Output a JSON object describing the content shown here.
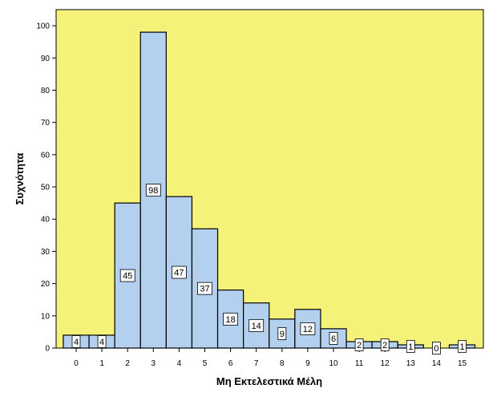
{
  "chart_data": {
    "type": "bar",
    "title": "",
    "xlabel": "Μη Εκτελεστικά Μέλη",
    "ylabel": "Συχνότητα",
    "ylim": [
      0,
      105
    ],
    "yticks": [
      0,
      10,
      20,
      30,
      40,
      50,
      60,
      70,
      80,
      90,
      100
    ],
    "xlim": [
      -0.5,
      15.5
    ],
    "xticks": [
      0,
      1,
      2,
      3,
      4,
      5,
      6,
      7,
      8,
      9,
      10,
      11,
      12,
      13,
      14,
      15
    ],
    "bins": [
      {
        "x": -0.5,
        "width": 0.5,
        "value": 4
      },
      {
        "x": 0.0,
        "width": 0.5,
        "value": 4
      },
      {
        "x": 0.5,
        "width": 0.5,
        "value": 4
      },
      {
        "x": 1.0,
        "width": 0.5,
        "value": 4
      },
      {
        "x": 1.5,
        "width": 1,
        "value": 45
      },
      {
        "x": 2.5,
        "width": 1,
        "value": 98
      },
      {
        "x": 3.5,
        "width": 1,
        "value": 47
      },
      {
        "x": 4.5,
        "width": 1,
        "value": 37
      },
      {
        "x": 5.5,
        "width": 1,
        "value": 18
      },
      {
        "x": 6.5,
        "width": 1,
        "value": 14
      },
      {
        "x": 7.5,
        "width": 1,
        "value": 9
      },
      {
        "x": 8.5,
        "width": 1,
        "value": 12
      },
      {
        "x": 9.5,
        "width": 1,
        "value": 6
      },
      {
        "x": 10.5,
        "width": 0.5,
        "value": 2
      },
      {
        "x": 11.0,
        "width": 0.5,
        "value": 2
      },
      {
        "x": 11.5,
        "width": 0.5,
        "value": 2
      },
      {
        "x": 12.0,
        "width": 0.5,
        "value": 2
      },
      {
        "x": 12.5,
        "width": 0.5,
        "value": 1
      },
      {
        "x": 13.0,
        "width": 0.5,
        "value": 1
      },
      {
        "x": 13.5,
        "width": 0.5,
        "value": 0
      },
      {
        "x": 14.0,
        "width": 0.5,
        "value": 0
      },
      {
        "x": 14.5,
        "width": 0.5,
        "value": 1
      },
      {
        "x": 15.0,
        "width": 0.5,
        "value": 1
      }
    ],
    "data_labels": [
      {
        "x": 0,
        "value": 4
      },
      {
        "x": 1,
        "value": 4
      },
      {
        "x": 2,
        "value": 45
      },
      {
        "x": 3,
        "value": 98
      },
      {
        "x": 4,
        "value": 47
      },
      {
        "x": 5,
        "value": 37
      },
      {
        "x": 6,
        "value": 18
      },
      {
        "x": 7,
        "value": 14
      },
      {
        "x": 8,
        "value": 9
      },
      {
        "x": 9,
        "value": 12
      },
      {
        "x": 10,
        "value": 6
      },
      {
        "x": 11,
        "value": 2
      },
      {
        "x": 12,
        "value": 2
      },
      {
        "x": 13,
        "value": 1
      },
      {
        "x": 14,
        "value": 0
      },
      {
        "x": 15,
        "value": 1
      }
    ],
    "grid": false,
    "colors": {
      "plot_background": "#F5F27A",
      "bar_fill": "#B3D1EE",
      "bar_stroke": "#000000",
      "label_box": "#FFFFFF"
    }
  }
}
